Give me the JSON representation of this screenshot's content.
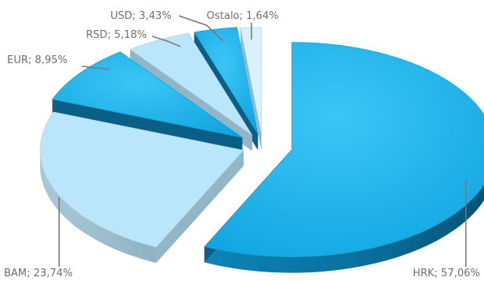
{
  "chart_data": {
    "type": "pie",
    "style": "3d-exploded",
    "slices": [
      {
        "label": "HRK; 57,06%",
        "category": "HRK",
        "value": 57.06,
        "color": "#19aee8"
      },
      {
        "label": "BAM; 23,74%",
        "category": "BAM",
        "value": 23.74,
        "color": "#b9e6fb"
      },
      {
        "label": "EUR; 8,95%",
        "category": "EUR",
        "value": 8.95,
        "color": "#19aee8"
      },
      {
        "label": "RSD; 5,18%",
        "category": "RSD",
        "value": 5.18,
        "color": "#b9e6fb"
      },
      {
        "label": "USD; 3,43%",
        "category": "USD",
        "value": 3.43,
        "color": "#19aee8"
      },
      {
        "label": "Ostalo; 1,64%",
        "category": "Ostalo",
        "value": 1.64,
        "color": "#d8f1fc"
      }
    ]
  }
}
